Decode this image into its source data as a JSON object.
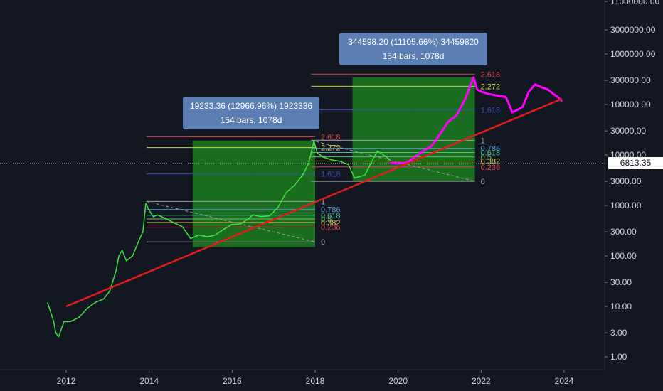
{
  "chart_data": {
    "type": "line",
    "y_scale": "log",
    "y_ticks": [
      "11000000.00",
      "3000000.00",
      "1000000.00",
      "300000.00",
      "100000.00",
      "30000.00",
      "10000.00",
      "3000.00",
      "1000.00",
      "300.00",
      "100.00",
      "30.00",
      "10.00",
      "3.00",
      "1.00"
    ],
    "x_ticks": [
      "2012",
      "2014",
      "2016",
      "2018",
      "2020",
      "2022",
      "2024"
    ],
    "ylim": [
      0.8,
      12000000
    ],
    "xlim": [
      2011.35,
      2025.1
    ],
    "current_price_label": "6813.35",
    "current_price": 6813.35,
    "colors": {
      "background": "#131722",
      "historical_series": "#3fe33f",
      "projected_series": "#ff00ff",
      "trendline": "#e01c1c",
      "box_fill": "#1e8a1e",
      "level_2618": "#e0424a",
      "level_2272": "#c8d640",
      "level_1618": "#3b4fb8",
      "level_1": "#9e9e9e",
      "level_0786": "#5b9bd5",
      "level_0618": "#4fc08d",
      "level_05": "#66bb6a",
      "level_0382": "#d4c84a",
      "level_0236": "#e0424a",
      "level_0": "#9e9e9e"
    },
    "trendline": {
      "x": [
        2012.0,
        2023.95
      ],
      "y": [
        10,
        130000
      ]
    },
    "series": [
      {
        "role": "historical",
        "x": [
          2011.55,
          2011.6,
          2011.7,
          2011.75,
          2011.82,
          2011.88,
          2011.95,
          2012.1,
          2012.3,
          2012.5,
          2012.7,
          2012.9,
          2013.05,
          2013.2,
          2013.27,
          2013.35,
          2013.45,
          2013.6,
          2013.75,
          2013.85,
          2013.92,
          2014.0,
          2014.1,
          2014.2,
          2014.4,
          2014.6,
          2014.8,
          2015.0,
          2015.05,
          2015.2,
          2015.4,
          2015.6,
          2015.8,
          2016.0,
          2016.2,
          2016.4,
          2016.5,
          2016.7,
          2016.9,
          2017.1,
          2017.3,
          2017.5,
          2017.7,
          2017.85,
          2017.97,
          2018.05,
          2018.2,
          2018.4,
          2018.6,
          2018.8,
          2018.95,
          2019.2,
          2019.35,
          2019.5,
          2019.65,
          2019.8
        ],
        "y": [
          12,
          9,
          5,
          3,
          2.5,
          3.5,
          5,
          5,
          6,
          9,
          12,
          14,
          20,
          50,
          100,
          130,
          80,
          100,
          200,
          300,
          1100,
          800,
          600,
          650,
          550,
          450,
          380,
          220,
          230,
          260,
          240,
          260,
          340,
          420,
          430,
          550,
          650,
          600,
          620,
          900,
          1800,
          2500,
          4000,
          7000,
          19000,
          11000,
          9000,
          8000,
          7500,
          6500,
          3500,
          4000,
          7000,
          12000,
          10000,
          8000
        ]
      },
      {
        "role": "projection",
        "x": [
          2019.8,
          2020.0,
          2020.2,
          2020.4,
          2020.6,
          2020.8,
          2021.0,
          2021.2,
          2021.4,
          2021.6,
          2021.75,
          2021.82,
          2021.9,
          2022.0,
          2022.2,
          2022.4,
          2022.6,
          2022.75,
          2022.9,
          2023.0,
          2023.15,
          2023.3,
          2023.45,
          2023.6,
          2023.75,
          2023.85,
          2023.95
        ],
        "y": [
          7000,
          6800,
          7000,
          9000,
          12000,
          15000,
          25000,
          45000,
          60000,
          120000,
          250000,
          344000,
          200000,
          180000,
          160000,
          150000,
          140000,
          70000,
          80000,
          90000,
          180000,
          250000,
          220000,
          200000,
          160000,
          140000,
          115000
        ]
      }
    ],
    "fib_sets": [
      {
        "box": {
          "x0": 2015.05,
          "x1": 2018.0,
          "y0": 150,
          "y1": 19233
        },
        "mid_line_x": 2016.52,
        "lines_x": [
          2015.05,
          2018.0
        ],
        "levels": [
          {
            "label": "2.618",
            "value": 23000,
            "color": "#e0424a"
          },
          {
            "label": "2.272",
            "value": 14000,
            "color": "#c8d640"
          },
          {
            "label": "1.618",
            "value": 4200,
            "color": "#3b4fb8"
          },
          {
            "label": "1",
            "value": 1200,
            "color": "#9e9e9e"
          },
          {
            "label": "0.786",
            "value": 830,
            "color": "#5b9bd5"
          },
          {
            "label": "0.618",
            "value": 640,
            "color": "#4fc08d"
          },
          {
            "label": "0.5",
            "value": 540,
            "color": "#66bb6a"
          },
          {
            "label": "0.382",
            "value": 460,
            "color": "#d4c84a"
          },
          {
            "label": "0.236",
            "value": 370,
            "color": "#e0424a"
          },
          {
            "label": "0",
            "value": 190,
            "color": "#9e9e9e"
          }
        ]
      },
      {
        "box": {
          "x0": 2018.9,
          "x1": 2021.85,
          "y0": 3000,
          "y1": 344598
        },
        "mid_line_x": 2020.37,
        "lines_x": [
          2018.9,
          2021.85
        ],
        "levels": [
          {
            "label": "2.618",
            "value": 400000,
            "color": "#e0424a"
          },
          {
            "label": "2.272",
            "value": 230000,
            "color": "#c8d640"
          },
          {
            "label": "1.618",
            "value": 78000,
            "color": "#3b4fb8"
          },
          {
            "label": "1",
            "value": 19500,
            "color": "#9e9e9e"
          },
          {
            "label": "0.786",
            "value": 13500,
            "color": "#5b9bd5"
          },
          {
            "label": "0.618",
            "value": 11200,
            "color": "#4fc08d"
          },
          {
            "label": "0.5",
            "value": 9200,
            "color": "#66bb6a"
          },
          {
            "label": "0.382",
            "value": 7600,
            "color": "#d4c84a"
          },
          {
            "label": "0.236",
            "value": 5800,
            "color": "#e0424a"
          },
          {
            "label": "0",
            "value": 3000,
            "color": "#9e9e9e"
          }
        ]
      }
    ],
    "callouts": [
      {
        "line1": "19233.36 (12966.96%) 1923336",
        "line2": "154 bars, 1078d"
      },
      {
        "line1": "344598.20 (11105.66%) 34459820",
        "line2": "154 bars, 1078d"
      }
    ]
  }
}
